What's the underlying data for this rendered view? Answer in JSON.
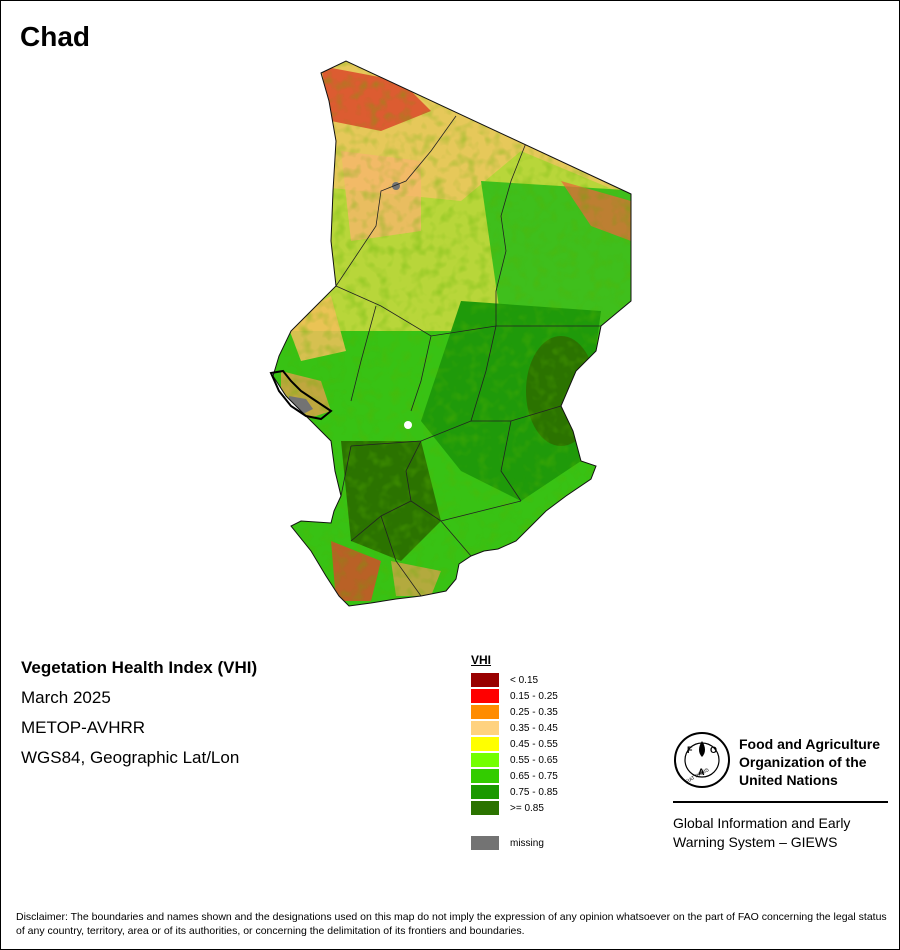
{
  "map": {
    "title": "Chad",
    "country": "Chad",
    "index_name": "Vegetation Health Index (VHI)",
    "period": "March 2025",
    "sensor": "METOP-AVHRR",
    "projection": "WGS84, Geographic Lat/Lon"
  },
  "legend": {
    "title": "VHI",
    "classes": [
      {
        "label": "< 0.15",
        "color": "#990000"
      },
      {
        "label": "0.15 - 0.25",
        "color": "#ff0000"
      },
      {
        "label": "0.25 - 0.35",
        "color": "#ff8c00"
      },
      {
        "label": "0.35 - 0.45",
        "color": "#ffd27f"
      },
      {
        "label": "0.45 - 0.55",
        "color": "#ffff00"
      },
      {
        "label": "0.55 - 0.65",
        "color": "#73ff00"
      },
      {
        "label": "0.65 - 0.75",
        "color": "#33cc00"
      },
      {
        "label": "0.75 - 0.85",
        "color": "#1a9900"
      },
      {
        "label": ">= 0.85",
        "color": "#2b7300"
      }
    ],
    "missing": {
      "label": "missing",
      "color": "#737373"
    }
  },
  "organization": {
    "name": "Food and Agriculture Organization of the United Nations",
    "name_lines": [
      "Food and Agriculture",
      "Organization of the",
      "United Nations"
    ],
    "logo_letters": "FAO",
    "logo_motto": "FIAT PANIS",
    "program_lines": [
      "Global Information and Early",
      "Warning System – GIEWS"
    ]
  },
  "disclaimer": "Disclaimer: The boundaries and names shown and the designations used on this map do not imply the expression of any opinion whatsoever on the part of FAO concerning the legal status of any country, territory, area or of its authorities, or concerning the delimitation of its frontiers and boundaries.",
  "colors": {
    "desert_north": "#f0c860",
    "sahel_yellow": "#e8e040",
    "light_green": "#73ff00",
    "mid_green": "#33cc00",
    "dark_green": "#1a9900",
    "deepest_green": "#2b7300",
    "stress_red": "#ff0000",
    "lake_missing": "#737373"
  }
}
